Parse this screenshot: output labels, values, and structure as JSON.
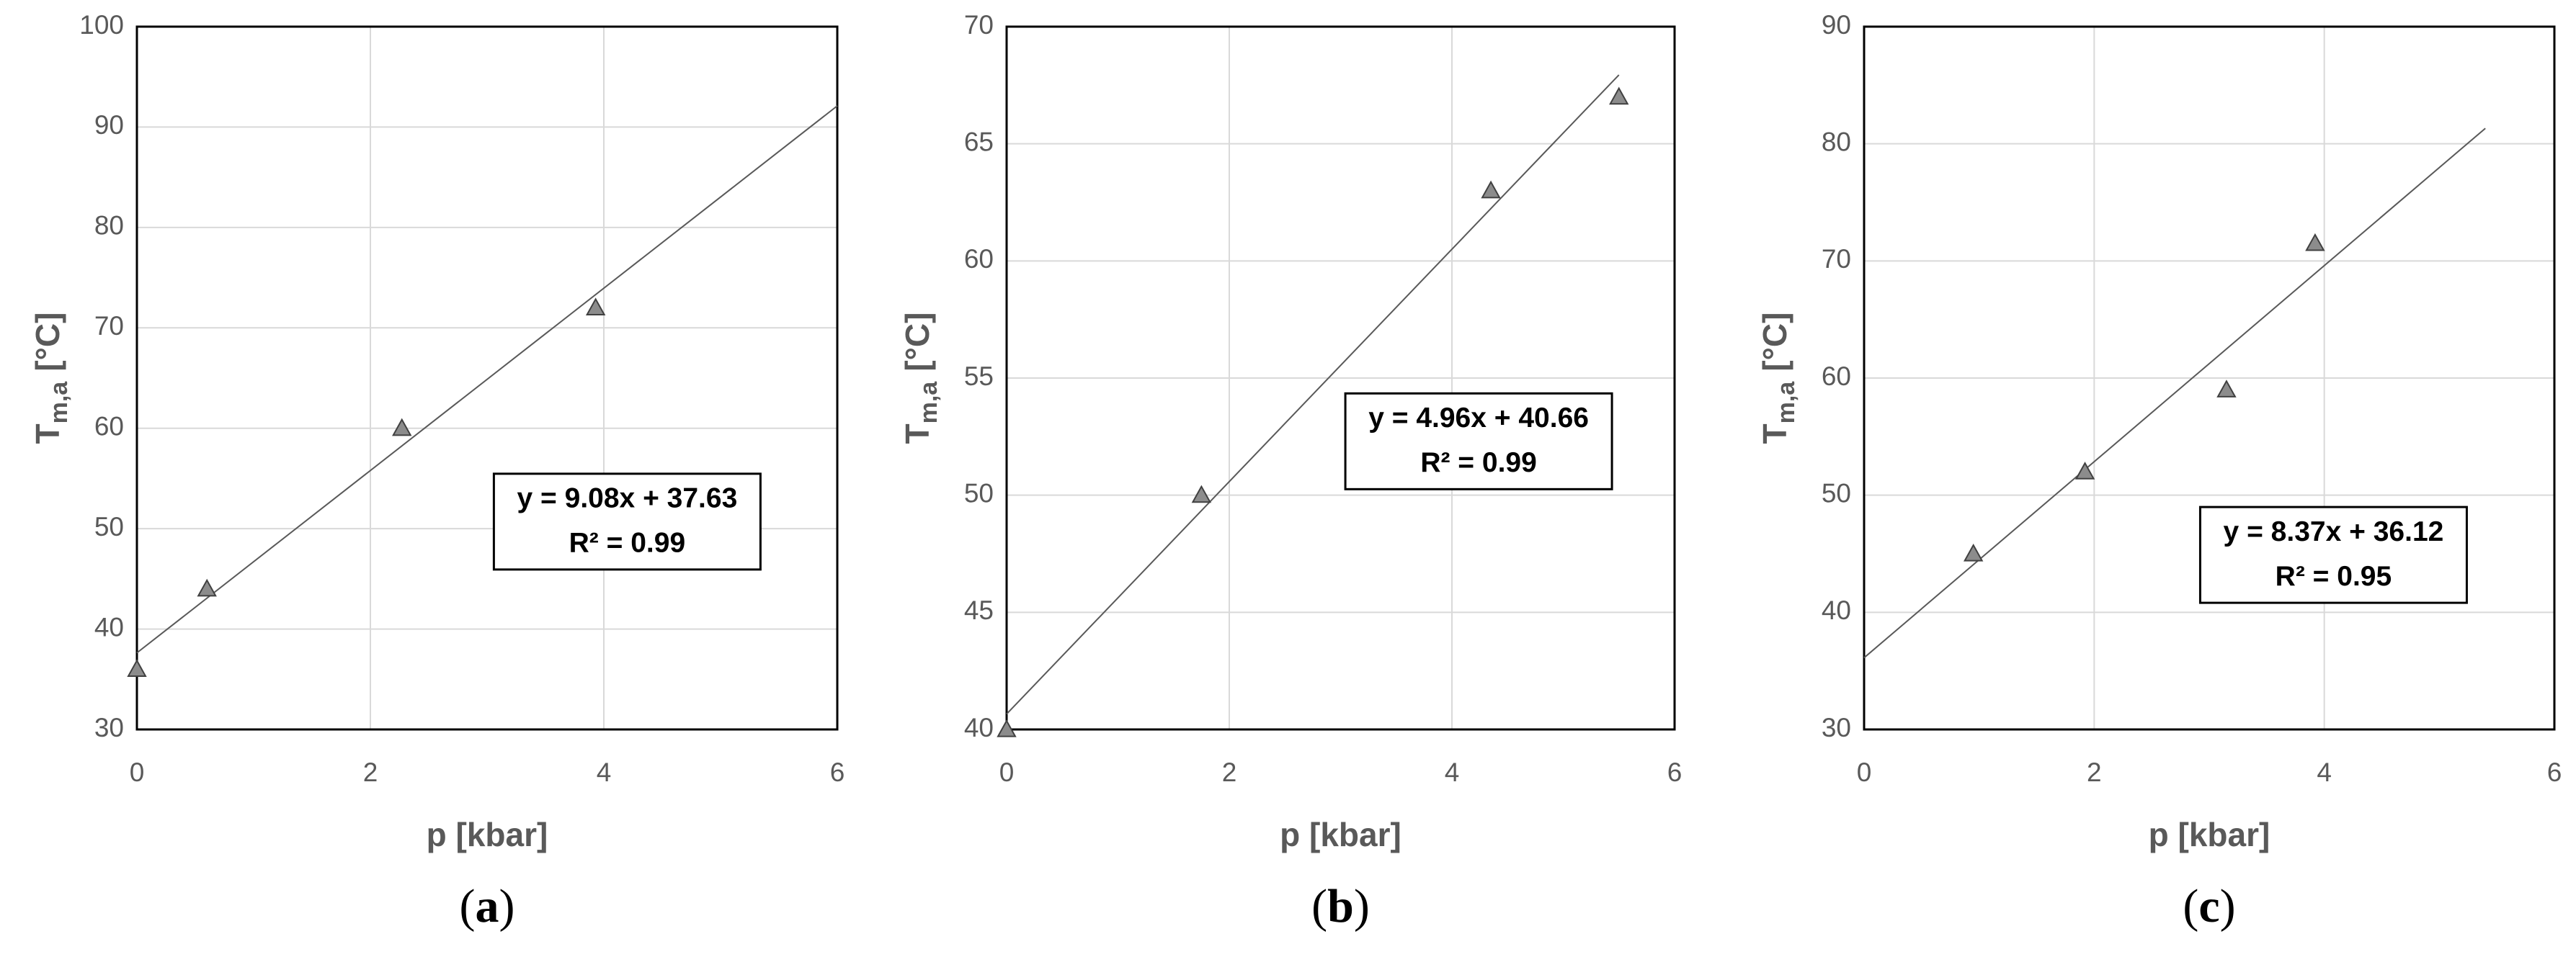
{
  "chart_data": [
    {
      "type": "scatter",
      "caption_open": "(",
      "caption_letter": "a",
      "caption_close": ")",
      "xlabel": "p [kbar]",
      "ylabel_main": "T",
      "ylabel_sub": "m,a",
      "ylabel_unit": "[°C]",
      "x": [
        0,
        0.6,
        2.27,
        3.93
      ],
      "values": [
        36,
        44,
        60,
        72
      ],
      "color": "#8c8c8c",
      "xlim": [
        0,
        6
      ],
      "ylim": [
        30,
        100
      ],
      "xticks": [
        0,
        2,
        4,
        6
      ],
      "yticks": [
        30,
        40,
        50,
        60,
        70,
        80,
        90,
        100
      ],
      "grid": true,
      "trendline": {
        "label": "y = 9.08x + 37.63",
        "r2_label": "R² = 0.99",
        "slope": 9.08,
        "intercept": 37.63,
        "x_range": [
          0,
          6
        ]
      }
    },
    {
      "type": "scatter",
      "caption_open": "(",
      "caption_letter": "b",
      "caption_close": ")",
      "xlabel": "p [kbar]",
      "ylabel_main": "T",
      "ylabel_sub": "m,a",
      "ylabel_unit": "[°C]",
      "x": [
        0,
        1.75,
        4.35,
        5.5
      ],
      "values": [
        40,
        50,
        63,
        67
      ],
      "color": "#8c8c8c",
      "xlim": [
        0,
        6
      ],
      "ylim": [
        40,
        70
      ],
      "xticks": [
        0,
        2,
        4,
        6
      ],
      "yticks": [
        40,
        45,
        50,
        55,
        60,
        65,
        70
      ],
      "grid": true,
      "trendline": {
        "label": "y = 4.96x + 40.66",
        "r2_label": "R² = 0.99",
        "slope": 4.96,
        "intercept": 40.66,
        "x_range": [
          0,
          5.5
        ]
      }
    },
    {
      "type": "scatter",
      "caption_open": "(",
      "caption_letter": "c",
      "caption_close": ")",
      "xlabel": "p [kbar]",
      "ylabel_main": "T",
      "ylabel_sub": "m,a",
      "ylabel_unit": "[°C]",
      "x": [
        0.95,
        1.92,
        3.15,
        3.92
      ],
      "values": [
        45,
        52,
        59,
        71.5
      ],
      "color": "#8c8c8c",
      "xlim": [
        0,
        6
      ],
      "ylim": [
        30,
        90
      ],
      "xticks": [
        0,
        2,
        4,
        6
      ],
      "yticks": [
        30,
        40,
        50,
        60,
        70,
        80,
        90
      ],
      "grid": true,
      "trendline": {
        "label": "y = 8.37x + 36.12",
        "r2_label": "R² = 0.95",
        "slope": 8.37,
        "intercept": 36.12,
        "x_range": [
          0,
          5.4
        ]
      }
    }
  ]
}
